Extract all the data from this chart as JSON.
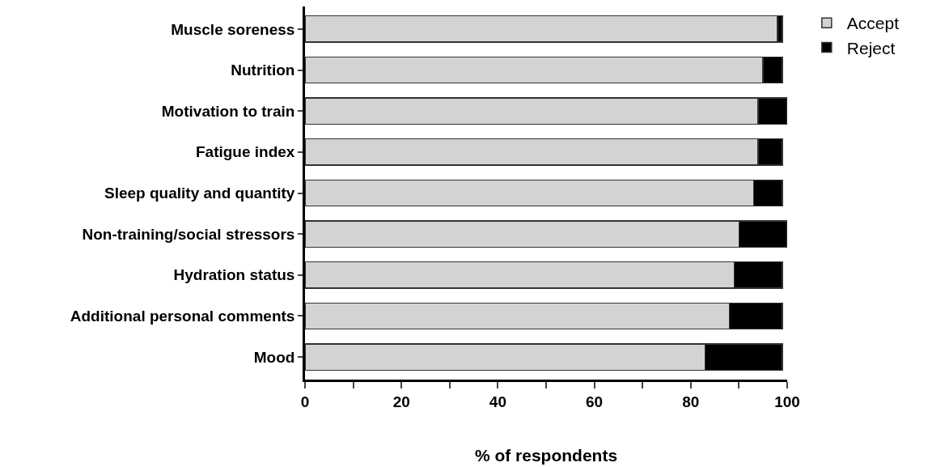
{
  "chart_data": {
    "type": "bar",
    "orientation": "horizontal",
    "stacked": true,
    "xlabel": "% of respondents",
    "categories": [
      "Muscle soreness",
      "Nutrition",
      "Motivation to train",
      "Fatigue index",
      "Sleep quality and quantity",
      "Non-training/social stressors",
      "Hydration status",
      "Additional personal comments",
      "Mood"
    ],
    "series": [
      {
        "name": "Accept",
        "color": "#d3d3d3",
        "values": [
          98,
          95,
          94,
          94,
          93,
          90,
          89,
          88,
          83
        ]
      },
      {
        "name": "Reject",
        "color": "#000000",
        "values": [
          1,
          4,
          6,
          5,
          6,
          10,
          10,
          11,
          16
        ]
      }
    ],
    "xlim": [
      0,
      100
    ],
    "xticks": [
      0,
      {
        "value": 10,
        "label": null
      },
      20,
      {
        "value": 30,
        "label": null
      },
      40,
      {
        "value": 50,
        "label": null
      },
      60,
      {
        "value": 70,
        "label": null
      },
      80,
      {
        "value": 90,
        "label": null
      },
      100
    ],
    "grid": false,
    "legend": "top right"
  }
}
